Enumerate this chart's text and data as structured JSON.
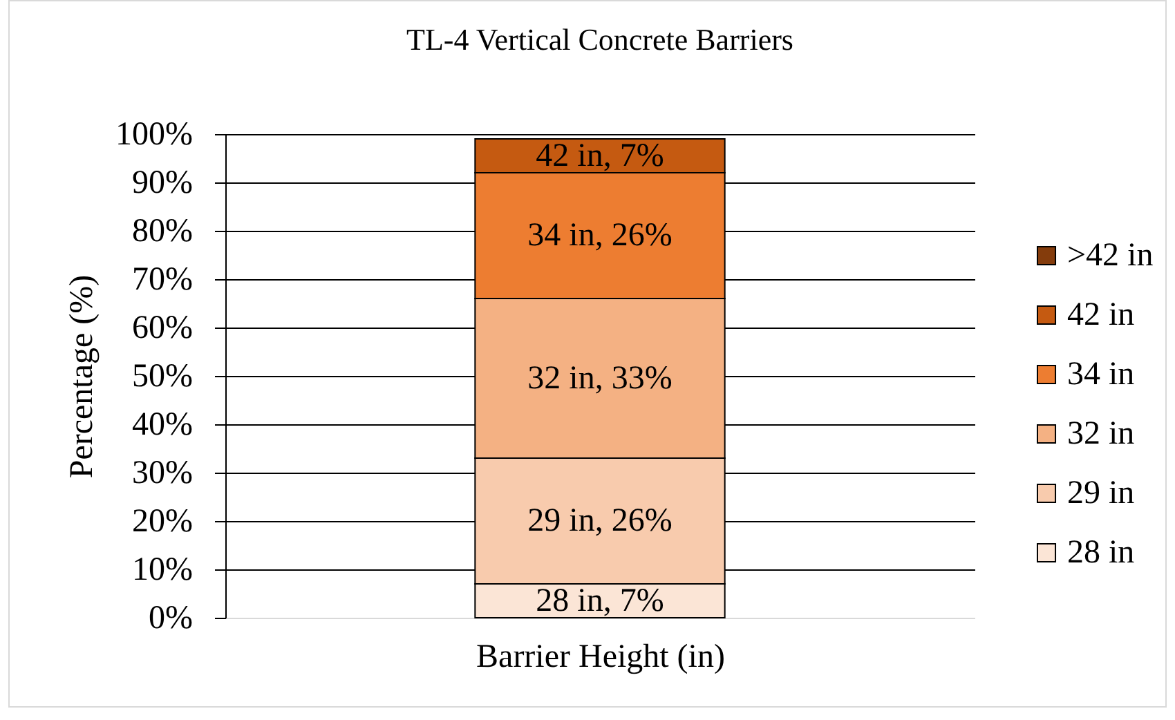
{
  "chart_data": {
    "type": "bar",
    "title": "TL-4 Vertical Concrete Barriers",
    "xlabel": "Barrier Height (in)",
    "ylabel": "Percentage (%)",
    "categories": [
      null
    ],
    "stacked": true,
    "series": [
      {
        "name": "28 in",
        "color": "#fbe5d6",
        "values": [
          7
        ],
        "value_labels": [
          "28 in, 7%"
        ]
      },
      {
        "name": "29 in",
        "color": "#f8cbad",
        "values": [
          26
        ],
        "value_labels": [
          "29 in, 26%"
        ]
      },
      {
        "name": "32 in",
        "color": "#f4b183",
        "values": [
          33
        ],
        "value_labels": [
          "32 in, 33%"
        ]
      },
      {
        "name": "34 in",
        "color": "#ed7d31",
        "values": [
          26
        ],
        "value_labels": [
          "34 in, 26%"
        ]
      },
      {
        "name": "42 in",
        "color": "#c55a11",
        "values": [
          7
        ],
        "value_labels": [
          "42 in, 7%"
        ]
      },
      {
        "name": ">42 in",
        "color": "#843c0c",
        "values": [
          null
        ]
      }
    ],
    "ylim": [
      0,
      100
    ],
    "yticks": [
      {
        "value": 0,
        "label": "0%"
      },
      {
        "value": 10,
        "label": "10%"
      },
      {
        "value": 20,
        "label": "20%"
      },
      {
        "value": 30,
        "label": "30%"
      },
      {
        "value": 40,
        "label": "40%"
      },
      {
        "value": 50,
        "label": "50%"
      },
      {
        "value": 60,
        "label": "60%"
      },
      {
        "value": 70,
        "label": "70%"
      },
      {
        "value": 80,
        "label": "80%"
      },
      {
        "value": 90,
        "label": "90%"
      },
      {
        "value": 100,
        "label": "100%"
      }
    ],
    "grid": "y",
    "legend": "right"
  }
}
